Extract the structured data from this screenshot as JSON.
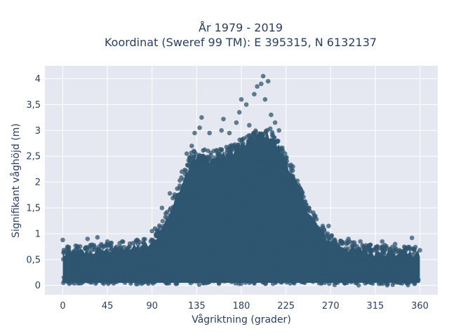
{
  "chart_data": {
    "type": "scatter",
    "title": "År 1979 - 2019",
    "subtitle": "Koordinat (Sweref 99 TM): E 395315, N 6132137",
    "xlabel": "Vågriktning (grader)",
    "ylabel": "Signifikant våghöjd (m)",
    "xlim": [
      -18,
      378
    ],
    "ylim": [
      -0.18,
      4.25
    ],
    "xticks": [
      0,
      45,
      90,
      135,
      180,
      225,
      270,
      315,
      360
    ],
    "xtick_labels": [
      "0",
      "45",
      "90",
      "135",
      "180",
      "225",
      "270",
      "315",
      "360"
    ],
    "yticks": [
      0,
      0.5,
      1,
      1.5,
      2,
      2.5,
      3,
      3.5,
      4
    ],
    "ytick_labels": [
      "0",
      "0,5",
      "1",
      "1,5",
      "2",
      "2,5",
      "3",
      "3,5",
      "4"
    ],
    "grid": true,
    "marker_color": "#2f5670",
    "background_color": "#e5e8f0",
    "envelope": {
      "x": [
        0,
        20,
        45,
        70,
        90,
        100,
        110,
        120,
        130,
        140,
        150,
        160,
        170,
        180,
        190,
        200,
        210,
        220,
        230,
        240,
        250,
        260,
        270,
        290,
        315,
        340,
        360
      ],
      "y": [
        0.6,
        0.65,
        0.68,
        0.72,
        0.8,
        1.1,
        1.5,
        2.0,
        2.45,
        2.5,
        2.45,
        2.5,
        2.6,
        2.7,
        2.8,
        2.95,
        2.9,
        2.6,
        2.2,
        1.75,
        1.35,
        1.05,
        0.85,
        0.7,
        0.65,
        0.62,
        0.6
      ]
    },
    "points": [
      {
        "x": 0,
        "y": 0.88
      },
      {
        "x": 25,
        "y": 0.9
      },
      {
        "x": 35,
        "y": 0.93
      },
      {
        "x": 45,
        "y": 0.85
      },
      {
        "x": 60,
        "y": 0.85
      },
      {
        "x": 75,
        "y": 0.88
      },
      {
        "x": 90,
        "y": 1.05
      },
      {
        "x": 93,
        "y": 1.1
      },
      {
        "x": 100,
        "y": 1.5
      },
      {
        "x": 108,
        "y": 1.78
      },
      {
        "x": 120,
        "y": 2.2
      },
      {
        "x": 125,
        "y": 2.55
      },
      {
        "x": 130,
        "y": 2.7
      },
      {
        "x": 133,
        "y": 2.95
      },
      {
        "x": 138,
        "y": 3.05
      },
      {
        "x": 140,
        "y": 3.25
      },
      {
        "x": 148,
        "y": 2.95
      },
      {
        "x": 155,
        "y": 2.6
      },
      {
        "x": 160,
        "y": 3.0
      },
      {
        "x": 162,
        "y": 3.22
      },
      {
        "x": 168,
        "y": 2.95
      },
      {
        "x": 175,
        "y": 3.15
      },
      {
        "x": 178,
        "y": 3.35
      },
      {
        "x": 180,
        "y": 3.6
      },
      {
        "x": 185,
        "y": 3.5
      },
      {
        "x": 188,
        "y": 3.1
      },
      {
        "x": 193,
        "y": 3.7
      },
      {
        "x": 196,
        "y": 3.85
      },
      {
        "x": 200,
        "y": 3.9
      },
      {
        "x": 202,
        "y": 4.05
      },
      {
        "x": 204,
        "y": 3.6
      },
      {
        "x": 207,
        "y": 3.95
      },
      {
        "x": 210,
        "y": 3.3
      },
      {
        "x": 214,
        "y": 3.15
      },
      {
        "x": 218,
        "y": 3.0
      },
      {
        "x": 224,
        "y": 2.55
      },
      {
        "x": 232,
        "y": 2.3
      },
      {
        "x": 240,
        "y": 1.85
      },
      {
        "x": 248,
        "y": 1.5
      },
      {
        "x": 262,
        "y": 1.15
      },
      {
        "x": 268,
        "y": 1.15
      },
      {
        "x": 288,
        "y": 0.9
      },
      {
        "x": 300,
        "y": 0.85
      },
      {
        "x": 322,
        "y": 0.85
      },
      {
        "x": 335,
        "y": 0.8
      },
      {
        "x": 352,
        "y": 0.92
      },
      {
        "x": 360,
        "y": 0.68
      }
    ]
  }
}
